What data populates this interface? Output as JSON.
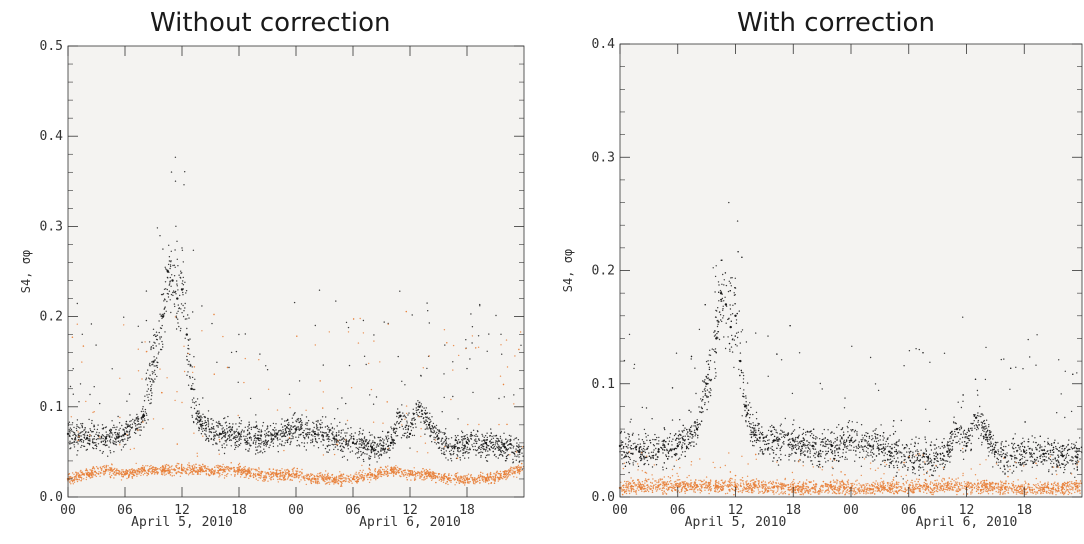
{
  "chart_data": [
    {
      "type": "scatter",
      "title": "Without correction",
      "ylabel": "S4, σφ",
      "ylim": [
        0,
        0.5
      ],
      "y_ticks": [
        "0.0",
        "0.1",
        "0.2",
        "0.3",
        "0.4",
        "0.5"
      ],
      "x_ticks": [
        "00",
        "06",
        "12",
        "18",
        "00",
        "06",
        "12",
        "18"
      ],
      "date_labels": [
        "April 5, 2010",
        "April 6, 2010"
      ],
      "colors": {
        "background": "#f4f3f1",
        "s4": "#1a1a1a",
        "sigma_phi": "#e8803a"
      },
      "series": [
        {
          "color": "#1a1a1a",
          "x": [
            0,
            2,
            4,
            6,
            8,
            9,
            10,
            10.5,
            11,
            11.5,
            12,
            12.5,
            13,
            14,
            16,
            18,
            20,
            22,
            24,
            26,
            28,
            30,
            32,
            34,
            35,
            36,
            37,
            38,
            39,
            40,
            42,
            44,
            46,
            47.5
          ],
          "y": [
            0.07,
            0.065,
            0.065,
            0.07,
            0.09,
            0.15,
            0.2,
            0.25,
            0.24,
            0.22,
            0.23,
            0.18,
            0.12,
            0.08,
            0.07,
            0.07,
            0.065,
            0.07,
            0.075,
            0.07,
            0.065,
            0.06,
            0.055,
            0.06,
            0.09,
            0.07,
            0.1,
            0.08,
            0.065,
            0.055,
            0.06,
            0.06,
            0.055,
            0.05
          ]
        },
        {
          "color": "#e8803a",
          "x": [
            0,
            2,
            4,
            6,
            8,
            10,
            12,
            14,
            16,
            18,
            20,
            22,
            24,
            26,
            28,
            30,
            32,
            34,
            36,
            38,
            40,
            42,
            44,
            46,
            47.5
          ],
          "y": [
            0.02,
            0.025,
            0.03,
            0.025,
            0.03,
            0.03,
            0.03,
            0.03,
            0.03,
            0.03,
            0.025,
            0.025,
            0.025,
            0.02,
            0.02,
            0.02,
            0.025,
            0.03,
            0.025,
            0.025,
            0.02,
            0.02,
            0.02,
            0.025,
            0.03
          ]
        }
      ]
    },
    {
      "type": "scatter",
      "title": "With correction",
      "ylabel": "S4, σφ",
      "ylim": [
        0,
        0.4
      ],
      "y_ticks": [
        "0.0",
        "0.1",
        "0.2",
        "0.3",
        "0.4"
      ],
      "x_ticks": [
        "00",
        "06",
        "12",
        "18",
        "00",
        "06",
        "12",
        "18"
      ],
      "date_labels": [
        "April 5, 2010",
        "April 6, 2010"
      ],
      "colors": {
        "background": "#f4f3f1",
        "s4": "#1a1a1a",
        "sigma_phi": "#e8803a"
      },
      "series": [
        {
          "color": "#1a1a1a",
          "x": [
            0,
            2,
            4,
            6,
            8,
            9,
            10,
            10.5,
            11,
            11.5,
            12,
            12.5,
            13,
            14,
            16,
            18,
            20,
            22,
            24,
            26,
            28,
            30,
            32,
            34,
            35,
            36,
            37,
            38,
            39,
            40,
            42,
            44,
            46,
            47.5
          ],
          "y": [
            0.045,
            0.04,
            0.04,
            0.045,
            0.06,
            0.1,
            0.14,
            0.18,
            0.17,
            0.15,
            0.16,
            0.12,
            0.08,
            0.055,
            0.05,
            0.05,
            0.045,
            0.045,
            0.05,
            0.045,
            0.04,
            0.035,
            0.035,
            0.04,
            0.06,
            0.045,
            0.07,
            0.055,
            0.04,
            0.035,
            0.04,
            0.038,
            0.036,
            0.035
          ]
        },
        {
          "color": "#e8803a",
          "x": [
            0,
            2,
            4,
            6,
            8,
            10,
            12,
            14,
            16,
            18,
            20,
            22,
            24,
            26,
            28,
            30,
            32,
            34,
            36,
            38,
            40,
            42,
            44,
            46,
            47.5
          ],
          "y": [
            0.008,
            0.009,
            0.01,
            0.009,
            0.01,
            0.01,
            0.009,
            0.01,
            0.009,
            0.008,
            0.008,
            0.009,
            0.008,
            0.007,
            0.008,
            0.008,
            0.009,
            0.01,
            0.009,
            0.009,
            0.008,
            0.007,
            0.007,
            0.008,
            0.009
          ]
        }
      ]
    }
  ]
}
